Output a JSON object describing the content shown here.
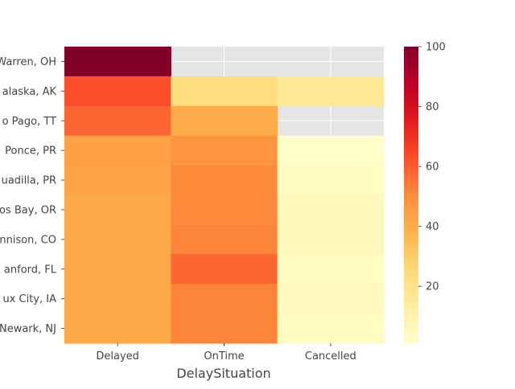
{
  "chart_data": {
    "type": "heatmap",
    "title": "",
    "xlabel": "DelaySituation",
    "ylabel": "",
    "x_categories": [
      "Delayed",
      "OnTime",
      "Cancelled"
    ],
    "y_categories": [
      "Warren, OH",
      "alaska, AK",
      "o Pago, TT",
      "Ponce, PR",
      "uadilla, PR",
      "os Bay, OR",
      "nnison, CO",
      "anford, FL",
      "ux City, IA",
      "Newark, NJ"
    ],
    "values": [
      [
        100,
        null,
        null
      ],
      [
        63,
        23,
        16
      ],
      [
        58,
        40,
        null
      ],
      [
        44,
        48,
        2
      ],
      [
        43,
        51,
        4
      ],
      [
        41,
        51,
        6
      ],
      [
        41,
        52,
        6
      ],
      [
        41,
        58,
        4
      ],
      [
        41,
        52,
        5
      ],
      [
        41,
        52,
        4
      ]
    ],
    "missing_color": "#e5e5e5",
    "grid": true,
    "colorbar": {
      "range": [
        1,
        100
      ],
      "ticks": [
        20,
        40,
        60,
        80,
        100
      ],
      "colormap": "YlOrRd",
      "placement": "right"
    }
  }
}
